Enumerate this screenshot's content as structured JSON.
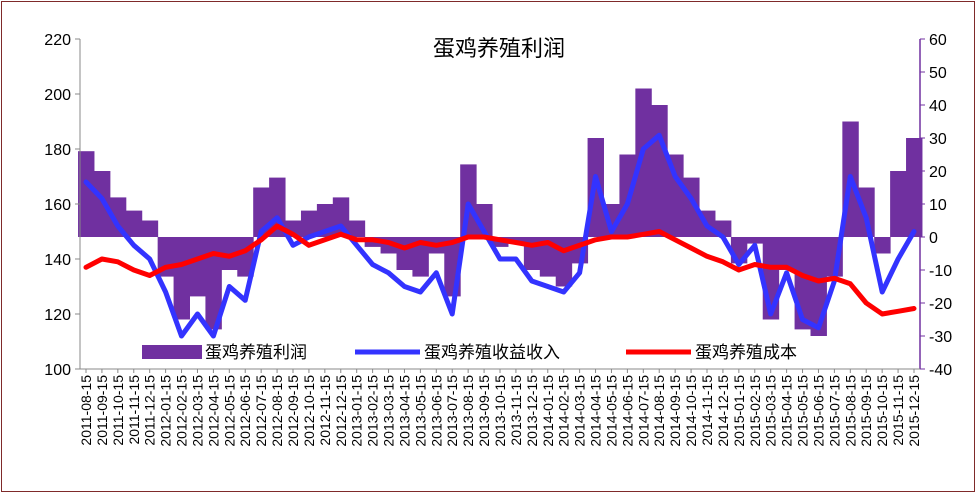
{
  "chart_data": {
    "type": "line",
    "title": "蛋鸡养殖利润",
    "xlabel": "",
    "ylabel_left": "",
    "ylabel_right": "",
    "ylim_left": [
      100,
      220
    ],
    "ylim_right": [
      -40,
      60
    ],
    "yticks_left": [
      "100",
      "120",
      "140",
      "160",
      "180",
      "200",
      "220"
    ],
    "yticks_right": [
      "-40",
      "-30",
      "-20",
      "-10",
      "0",
      "10",
      "20",
      "30",
      "40",
      "50",
      "60"
    ],
    "categories": [
      "2011-08-15",
      "2011-09-15",
      "2011-10-15",
      "2011-11-15",
      "2011-12-15",
      "2012-01-15",
      "2012-02-15",
      "2012-03-15",
      "2012-04-15",
      "2012-05-15",
      "2012-06-15",
      "2012-07-15",
      "2012-08-15",
      "2012-09-15",
      "2012-10-15",
      "2012-11-15",
      "2012-12-15",
      "2013-01-15",
      "2013-02-15",
      "2013-03-15",
      "2013-04-15",
      "2013-05-15",
      "2013-06-15",
      "2013-07-15",
      "2013-08-15",
      "2013-09-15",
      "2013-10-15",
      "2013-11-15",
      "2013-12-15",
      "2014-01-15",
      "2014-02-15",
      "2014-03-15",
      "2014-04-15",
      "2014-05-15",
      "2014-06-15",
      "2014-07-15",
      "2014-08-15",
      "2014-09-15",
      "2014-10-15",
      "2014-11-15",
      "2014-12-15",
      "2015-01-15",
      "2015-02-15",
      "2015-03-15",
      "2015-04-15",
      "2015-05-15",
      "2015-06-15",
      "2015-07-15",
      "2015-08-15",
      "2015-09-15",
      "2015-10-15",
      "2015-11-15",
      "2015-12-15"
    ],
    "legend_position": "bottom",
    "grid": false,
    "series": [
      {
        "name": "蛋鸡养殖利润",
        "type": "area",
        "axis": "right",
        "color": "#7030a0",
        "values": [
          26,
          20,
          12,
          8,
          5,
          -12,
          -25,
          -18,
          -28,
          -10,
          -12,
          15,
          18,
          5,
          8,
          10,
          12,
          5,
          -3,
          -5,
          -10,
          -12,
          -5,
          -18,
          22,
          10,
          -3,
          -2,
          -10,
          -12,
          -15,
          -8,
          30,
          10,
          25,
          45,
          40,
          25,
          18,
          8,
          5,
          -8,
          -2,
          -25,
          -10,
          -28,
          -30,
          -12,
          35,
          15,
          -5,
          20,
          30
        ]
      },
      {
        "name": "蛋鸡养殖收益收入",
        "type": "line",
        "axis": "left",
        "color": "#3333ff",
        "values": [
          168,
          162,
          152,
          145,
          140,
          128,
          112,
          120,
          112,
          130,
          125,
          150,
          155,
          145,
          148,
          150,
          152,
          145,
          138,
          135,
          130,
          128,
          135,
          120,
          160,
          150,
          140,
          140,
          132,
          130,
          128,
          135,
          170,
          150,
          160,
          180,
          185,
          170,
          162,
          152,
          148,
          138,
          145,
          120,
          135,
          118,
          115,
          132,
          170,
          155,
          128,
          140,
          150
        ]
      },
      {
        "name": "蛋鸡养殖成本",
        "type": "line",
        "axis": "left",
        "color": "#ff0000",
        "values": [
          137,
          140,
          139,
          136,
          134,
          137,
          138,
          140,
          142,
          141,
          143,
          147,
          152,
          149,
          145,
          147,
          149,
          147,
          147,
          146,
          144,
          146,
          145,
          146,
          148,
          148,
          147,
          146,
          145,
          146,
          143,
          145,
          147,
          148,
          148,
          149,
          150,
          147,
          144,
          141,
          139,
          136,
          138,
          137,
          137,
          134,
          132,
          133,
          131,
          124,
          120,
          121,
          122
        ]
      }
    ]
  }
}
